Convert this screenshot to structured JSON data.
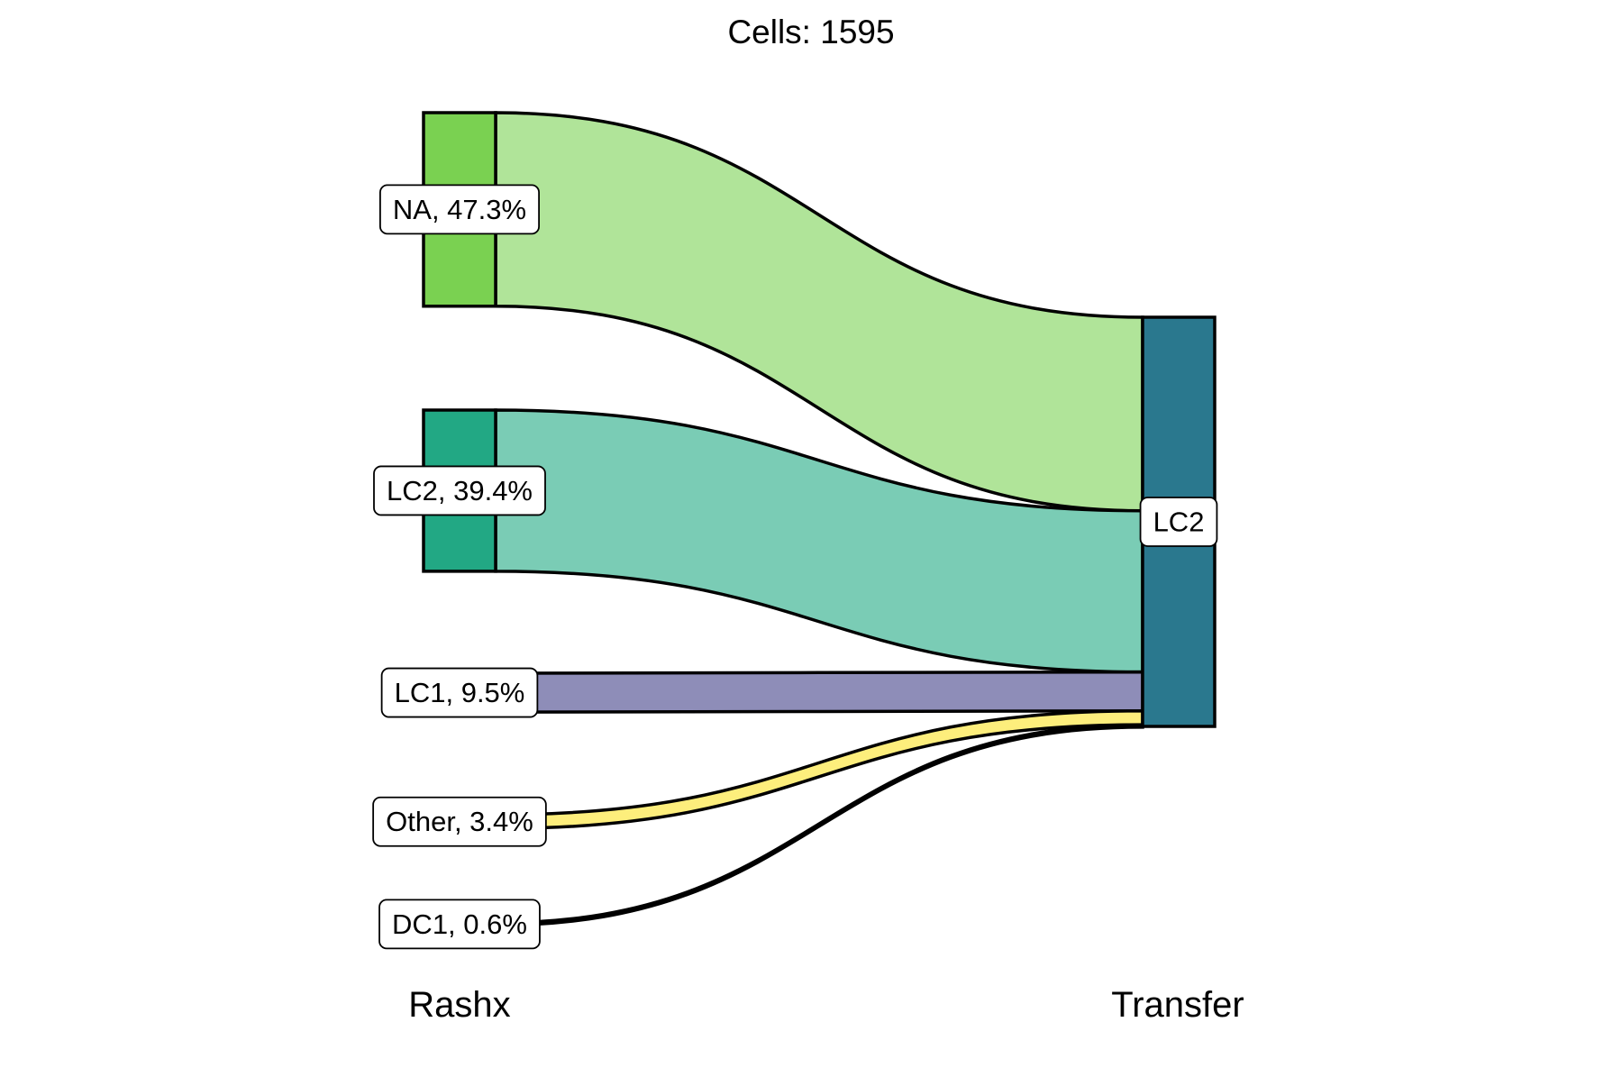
{
  "chart_data": {
    "type": "sankey",
    "title": "Cells:  1595",
    "axes": [
      "Rashx",
      "Transfer"
    ],
    "total": 1595,
    "left_nodes": [
      {
        "name": "NA",
        "percent": 47.3,
        "label": "NA, 47.3%",
        "color": "#7AD151"
      },
      {
        "name": "LC2",
        "percent": 39.4,
        "label": "LC2, 39.4%",
        "color": "#22A884"
      },
      {
        "name": "LC1",
        "percent": 9.5,
        "label": "LC1, 9.5%",
        "color": "#8E8DB8"
      },
      {
        "name": "Other",
        "percent": 3.4,
        "label": "Other, 3.4%",
        "color": "#FDE725"
      },
      {
        "name": "DC1",
        "percent": 0.6,
        "label": "DC1, 0.6%",
        "color": "#000000"
      }
    ],
    "right_nodes": [
      {
        "name": "LC2",
        "percent": 100,
        "label": "LC2",
        "color": "#2A788E"
      }
    ],
    "flows": [
      {
        "from": "NA",
        "to": "LC2",
        "percent": 47.3,
        "color": "#B0E499"
      },
      {
        "from": "LC2",
        "to": "LC2",
        "percent": 39.4,
        "color": "#7ACCB5"
      },
      {
        "from": "LC1",
        "to": "LC2",
        "percent": 9.5,
        "color": "#8E8DB8"
      },
      {
        "from": "Other",
        "to": "LC2",
        "percent": 3.4,
        "color": "#FDEE7C"
      },
      {
        "from": "DC1",
        "to": "LC2",
        "percent": 0.6,
        "color": "#000000"
      }
    ]
  }
}
